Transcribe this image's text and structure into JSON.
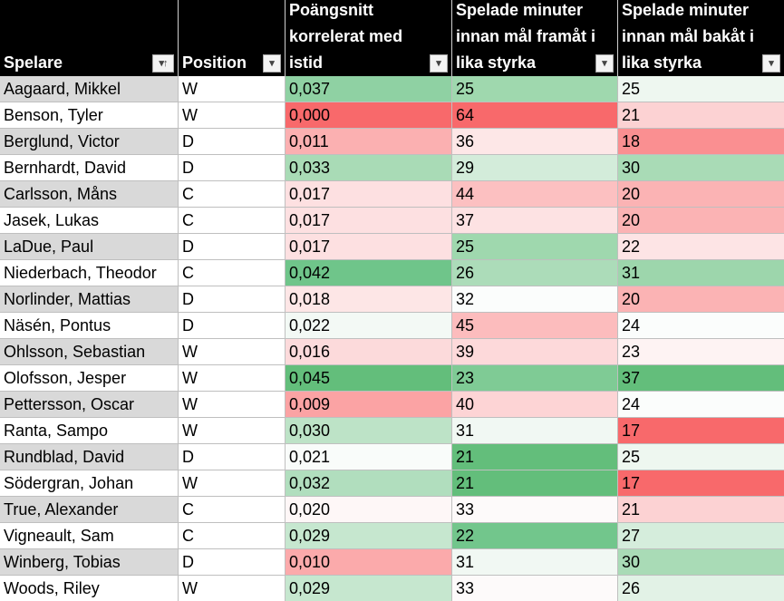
{
  "headers": [
    {
      "label": "Spelare",
      "filter": "sort-ascending-filter"
    },
    {
      "label": "Position",
      "filter": "dropdown-filter"
    },
    {
      "label": "Poängsnitt\nkorrelerat med\nistid",
      "filter": "dropdown-filter"
    },
    {
      "label": "Spelade minuter\ninnan mål framåt i\nlika styrka",
      "filter": "dropdown-filter"
    },
    {
      "label": "Spelade minuter\ninnan mål bakåt i\nlika styrka",
      "filter": "dropdown-filter"
    }
  ],
  "filter_glyph": "▾",
  "sorted_glyph": "▾↑",
  "name_cell_colors": [
    "#d9d9d9",
    "#ffffff"
  ],
  "rows": [
    {
      "player": "Aagaard, Mikkel",
      "position": "W",
      "points": "0,037",
      "fwd": "25",
      "back": "25",
      "points_color": "#8fd1a3",
      "fwd_color": "#9fd8ae",
      "back_color": "#eef7f0"
    },
    {
      "player": "Benson, Tyler",
      "position": "W",
      "points": "0,000",
      "fwd": "64",
      "back": "21",
      "points_color": "#f8696b",
      "fwd_color": "#f8696b",
      "back_color": "#fcd2d3"
    },
    {
      "player": "Berglund, Victor",
      "position": "D",
      "points": "0,011",
      "fwd": "36",
      "back": "18",
      "points_color": "#fbb0b1",
      "fwd_color": "#fde7e7",
      "back_color": "#fa8f91"
    },
    {
      "player": "Bernhardt, David",
      "position": "D",
      "points": "0,033",
      "fwd": "29",
      "back": "30",
      "points_color": "#a9dbb6",
      "fwd_color": "#d3ecda",
      "back_color": "#a9dbb6"
    },
    {
      "player": "Carlsson, Måns",
      "position": "C",
      "points": "0,017",
      "fwd": "44",
      "back": "20",
      "points_color": "#fde0e1",
      "fwd_color": "#fcc0c1",
      "back_color": "#fbb3b4"
    },
    {
      "player": "Jasek, Lukas",
      "position": "C",
      "points": "0,017",
      "fwd": "37",
      "back": "20",
      "points_color": "#fde0e1",
      "fwd_color": "#fde2e3",
      "back_color": "#fbb3b4"
    },
    {
      "player": "LaDue, Paul",
      "position": "D",
      "points": "0,017",
      "fwd": "25",
      "back": "22",
      "points_color": "#fde0e1",
      "fwd_color": "#9fd8ae",
      "back_color": "#fde4e5"
    },
    {
      "player": "Niederbach, Theodor",
      "position": "C",
      "points": "0,042",
      "fwd": "26",
      "back": "31",
      "points_color": "#6fc58a",
      "fwd_color": "#acdcb9",
      "back_color": "#9dd6ac"
    },
    {
      "player": "Norlinder, Mattias",
      "position": "D",
      "points": "0,018",
      "fwd": "32",
      "back": "20",
      "points_color": "#fde6e6",
      "fwd_color": "#fbfdfc",
      "back_color": "#fbb3b4"
    },
    {
      "player": "Näsén, Pontus",
      "position": "D",
      "points": "0,022",
      "fwd": "45",
      "back": "24",
      "points_color": "#f3f9f5",
      "fwd_color": "#fcbcbd",
      "back_color": "#fbfdfc"
    },
    {
      "player": "Ohlsson, Sebastian",
      "position": "W",
      "points": "0,016",
      "fwd": "39",
      "back": "23",
      "points_color": "#fcdadb",
      "fwd_color": "#fdd9da",
      "back_color": "#fef3f3"
    },
    {
      "player": "Olofsson, Jesper",
      "position": "W",
      "points": "0,045",
      "fwd": "23",
      "back": "37",
      "points_color": "#63be7b",
      "fwd_color": "#7fcb95",
      "back_color": "#63be7b"
    },
    {
      "player": "Pettersson, Oscar",
      "position": "W",
      "points": "0,009",
      "fwd": "40",
      "back": "24",
      "points_color": "#fba3a4",
      "fwd_color": "#fdd4d5",
      "back_color": "#fbfdfc"
    },
    {
      "player": "Ranta, Sampo",
      "position": "W",
      "points": "0,030",
      "fwd": "31",
      "back": "17",
      "points_color": "#bde3c7",
      "fwd_color": "#f1f8f3",
      "back_color": "#f8696b"
    },
    {
      "player": "Rundblad, David",
      "position": "D",
      "points": "0,021",
      "fwd": "21",
      "back": "25",
      "points_color": "#f9fcfa",
      "fwd_color": "#63be7b",
      "back_color": "#eef7f0"
    },
    {
      "player": "Södergran, Johan",
      "position": "W",
      "points": "0,032",
      "fwd": "21",
      "back": "17",
      "points_color": "#b1debe",
      "fwd_color": "#63be7b",
      "back_color": "#f8696b"
    },
    {
      "player": "True, Alexander",
      "position": "C",
      "points": "0,020",
      "fwd": "33",
      "back": "21",
      "points_color": "#fef7f7",
      "fwd_color": "#fdfafa",
      "back_color": "#fcd2d3"
    },
    {
      "player": "Vigneault, Sam",
      "position": "C",
      "points": "0,029",
      "fwd": "22",
      "back": "27",
      "points_color": "#c6e7cf",
      "fwd_color": "#72c68c",
      "back_color": "#d5eddc"
    },
    {
      "player": "Winberg, Tobias",
      "position": "D",
      "points": "0,010",
      "fwd": "31",
      "back": "30",
      "points_color": "#fbaaab",
      "fwd_color": "#f1f8f3",
      "back_color": "#a9dbb6"
    },
    {
      "player": "Woods, Riley",
      "position": "W",
      "points": "0,029",
      "fwd": "33",
      "back": "26",
      "points_color": "#c6e7cf",
      "fwd_color": "#fdfafa",
      "back_color": "#e2f2e6"
    }
  ]
}
